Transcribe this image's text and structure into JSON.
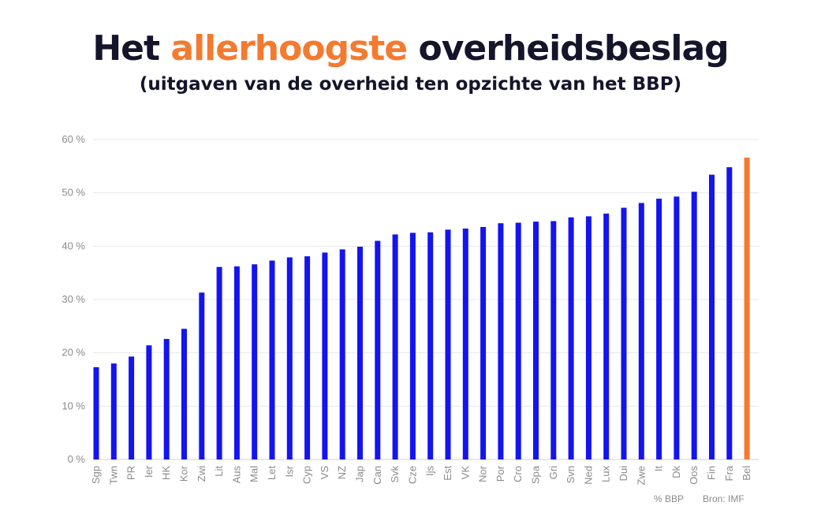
{
  "title": {
    "part1": "Het ",
    "highlight": "allerhoogste",
    "part2": " overheidsbeslag"
  },
  "subtitle": "(uitgaven van de overheid ten opzichte van het BBP)",
  "footer": {
    "unit": "% BBP",
    "source": "Bron: IMF"
  },
  "colors": {
    "bar": "#1414f0",
    "highlight_bar": "#f47a30",
    "title_accent": "#f47a30",
    "title": "#14142b"
  },
  "chart_data": {
    "type": "bar",
    "categories": [
      "Sgp",
      "Twn",
      "PR",
      "Ier",
      "HK",
      "Kor",
      "Zwi",
      "Lit",
      "Aus",
      "Mal",
      "Let",
      "Isr",
      "Cyp",
      "VS",
      "NZ",
      "Jap",
      "Can",
      "Svk",
      "Cze",
      "Ijs",
      "Est",
      "VK",
      "Nor",
      "Por",
      "Cro",
      "Spa",
      "Gri",
      "Svn",
      "Ned",
      "Lux",
      "Dui",
      "Zwe",
      "It",
      "Dk",
      "Oos",
      "Fin",
      "Fra",
      "Bel"
    ],
    "values": [
      17.3,
      18.0,
      19.3,
      21.4,
      22.6,
      24.5,
      31.3,
      36.1,
      36.2,
      36.6,
      37.3,
      37.9,
      38.1,
      38.8,
      39.4,
      39.9,
      41.0,
      42.2,
      42.5,
      42.6,
      43.1,
      43.3,
      43.6,
      44.3,
      44.4,
      44.6,
      44.7,
      45.4,
      45.6,
      46.1,
      47.2,
      48.1,
      48.9,
      49.3,
      50.2,
      53.4,
      54.8,
      56.6
    ],
    "highlight": "Bel",
    "ylim": [
      0,
      60
    ],
    "yticks": [
      "0 %",
      "10 %",
      "20 %",
      "30 %",
      "40 %",
      "50 %",
      "60 %"
    ],
    "ytick_values": [
      0,
      10,
      20,
      30,
      40,
      50,
      60
    ],
    "grid": true
  }
}
